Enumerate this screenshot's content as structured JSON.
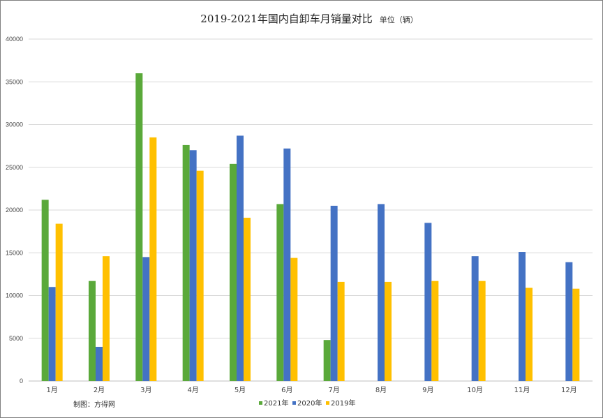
{
  "chart_data": {
    "type": "bar",
    "title": "2019-2021年国内自卸车月销量对比",
    "unit_label": "单位（辆）",
    "credit": "制图：方得网",
    "xlabel": "",
    "ylabel": "",
    "ylim": [
      0,
      40000
    ],
    "yticks": [
      0,
      5000,
      10000,
      15000,
      20000,
      25000,
      30000,
      35000,
      40000
    ],
    "grid": true,
    "legend_position": "bottom",
    "categories": [
      "1月",
      "2月",
      "3月",
      "4月",
      "5月",
      "6月",
      "7月",
      "8月",
      "9月",
      "10月",
      "11月",
      "12月"
    ],
    "series": [
      {
        "name": "2021年",
        "color": "#5aa93a",
        "values": [
          21200,
          11700,
          36000,
          27600,
          25400,
          20700,
          4800,
          null,
          null,
          null,
          null,
          null
        ]
      },
      {
        "name": "2020年",
        "color": "#4472c4",
        "values": [
          11000,
          4000,
          14500,
          27000,
          28700,
          27200,
          20500,
          20700,
          18500,
          14600,
          15100,
          13900
        ]
      },
      {
        "name": "2019年",
        "color": "#ffc000",
        "values": [
          18400,
          14600,
          28500,
          24600,
          19100,
          14400,
          11600,
          11600,
          11700,
          11700,
          10900,
          10800
        ]
      }
    ]
  }
}
